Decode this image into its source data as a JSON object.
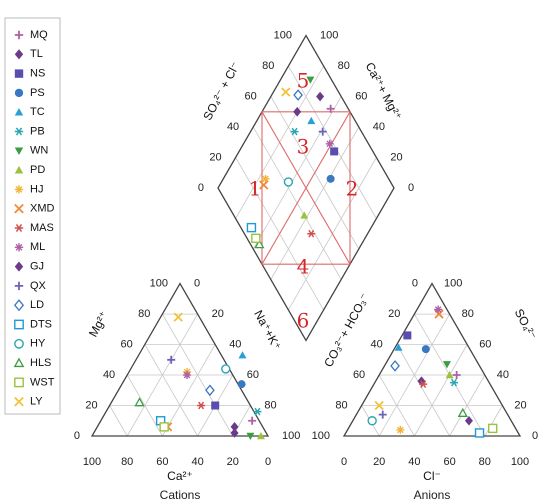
{
  "chart_data": {
    "type": "scatter",
    "subtype": "piper-trilinear",
    "labels": {
      "so4cl": "SO₄²⁻ + Cl⁻",
      "camg": "Ca²⁺+ Mg²⁺",
      "mg": "Mg²⁺",
      "nak": "Na⁺+K⁺",
      "co3hco3": "CO₃²⁻+ HCO₃⁻",
      "so4": "SO₄²⁻",
      "ca": "Ca²⁺",
      "cl": "Cl⁻",
      "cations": "Cations",
      "anions": "Anions"
    },
    "zone_labels": [
      "1",
      "2",
      "3",
      "4",
      "5",
      "6"
    ],
    "ticks": [
      "0",
      "20",
      "40",
      "60",
      "80",
      "100"
    ],
    "series": [
      {
        "name": "MQ",
        "marker": "plus",
        "color": "#b05fa6",
        "cation": [
          86,
          10
        ],
        "anion": [
          44,
          40
        ],
        "diamond": [
          90,
          62
        ]
      },
      {
        "name": "TL",
        "marker": "diamond",
        "color": "#6b3b8a",
        "cation": [
          78,
          6
        ],
        "anion": [
          26,
          36
        ],
        "diamond": [
          88,
          72
        ]
      },
      {
        "name": "NS",
        "marker": "square",
        "color": "#5a4db0",
        "cation": [
          60,
          20
        ],
        "anion": [
          3,
          66
        ],
        "diamond": [
          78,
          46
        ]
      },
      {
        "name": "PS",
        "marker": "circle",
        "color": "#3a78c2",
        "cation": [
          68,
          34
        ],
        "anion": [
          18,
          57
        ],
        "diamond": [
          67,
          39
        ]
      },
      {
        "name": "TC",
        "marker": "triangle",
        "color": "#2a9fd6",
        "cation": [
          59,
          53
        ],
        "anion": [
          2,
          58
        ],
        "diamond": [
          75,
          69
        ]
      },
      {
        "name": "PB",
        "marker": "asterisk",
        "color": "#2aa6b0",
        "cation": [
          86,
          16
        ],
        "anion": [
          45,
          35
        ],
        "diamond": [
          62,
          75
        ]
      },
      {
        "name": "WN",
        "marker": "triangle-down",
        "color": "#3c9c44",
        "cation": [
          90,
          0
        ],
        "anion": [
          35,
          47
        ],
        "diamond": [
          88,
          83
        ]
      },
      {
        "name": "PD",
        "marker": "triangle",
        "color": "#9ac23c",
        "cation": [
          96,
          0
        ],
        "anion": [
          40,
          40
        ],
        "diamond": [
          40,
          42
        ]
      },
      {
        "name": "HJ",
        "marker": "star",
        "color": "#f2b63a",
        "cation": [
          33,
          42
        ],
        "anion": [
          30,
          4
        ],
        "diamond": [
          30,
          76
        ]
      },
      {
        "name": "XMD",
        "marker": "x",
        "color": "#f08a3a",
        "cation": [
          40,
          6
        ],
        "anion": [
          14,
          80
        ],
        "diamond": [
          27,
          75
        ]
      },
      {
        "name": "MAS",
        "marker": "asterisk",
        "color": "#d05050",
        "cation": [
          52,
          20
        ],
        "anion": [
          28,
          34
        ],
        "diamond": [
          38,
          32
        ]
      },
      {
        "name": "ML",
        "marker": "star",
        "color": "#b05fa6",
        "cation": [
          34,
          40
        ],
        "anion": [
          12,
          83
        ],
        "diamond": [
          78,
          51
        ]
      },
      {
        "name": "GJ",
        "marker": "diamond",
        "color": "#6b3b8a",
        "cation": [
          80,
          2
        ],
        "anion": [
          66,
          10
        ],
        "diamond": [
          70,
          80
        ]
      },
      {
        "name": "QX",
        "marker": "plus",
        "color": "#6b63b8",
        "cation": [
          20,
          50
        ],
        "anion": [
          15,
          14
        ],
        "diamond": [
          78,
          59
        ]
      },
      {
        "name": "LD",
        "marker": "diamond-open",
        "color": "#3a78c2",
        "cation": [
          52,
          30
        ],
        "anion": [
          6,
          46
        ],
        "diamond": [
          76,
          85
        ]
      },
      {
        "name": "DTS",
        "marker": "square-open",
        "color": "#1e9bd6",
        "cation": [
          34,
          10
        ],
        "anion": [
          76,
          2
        ],
        "diamond": [
          6,
          68
        ]
      },
      {
        "name": "HY",
        "marker": "circle-open",
        "color": "#2aa6b0",
        "cation": [
          54,
          44
        ],
        "anion": [
          11,
          10
        ],
        "diamond": [
          42,
          62
        ]
      },
      {
        "name": "HLS",
        "marker": "triangle-open",
        "color": "#3c9c44",
        "cation": [
          16,
          22
        ],
        "anion": [
          60,
          15
        ],
        "diamond": [
          5,
          58
        ]
      },
      {
        "name": "WST",
        "marker": "square-open",
        "color": "#9ac23c",
        "cation": [
          38,
          6
        ],
        "anion": [
          82,
          5
        ],
        "diamond": [
          5,
          62
        ]
      },
      {
        "name": "LY",
        "marker": "x",
        "color": "#f2c23a",
        "cation": [
          10,
          78
        ],
        "anion": [
          10,
          20
        ],
        "diamond": [
          70,
          93
        ]
      }
    ]
  }
}
